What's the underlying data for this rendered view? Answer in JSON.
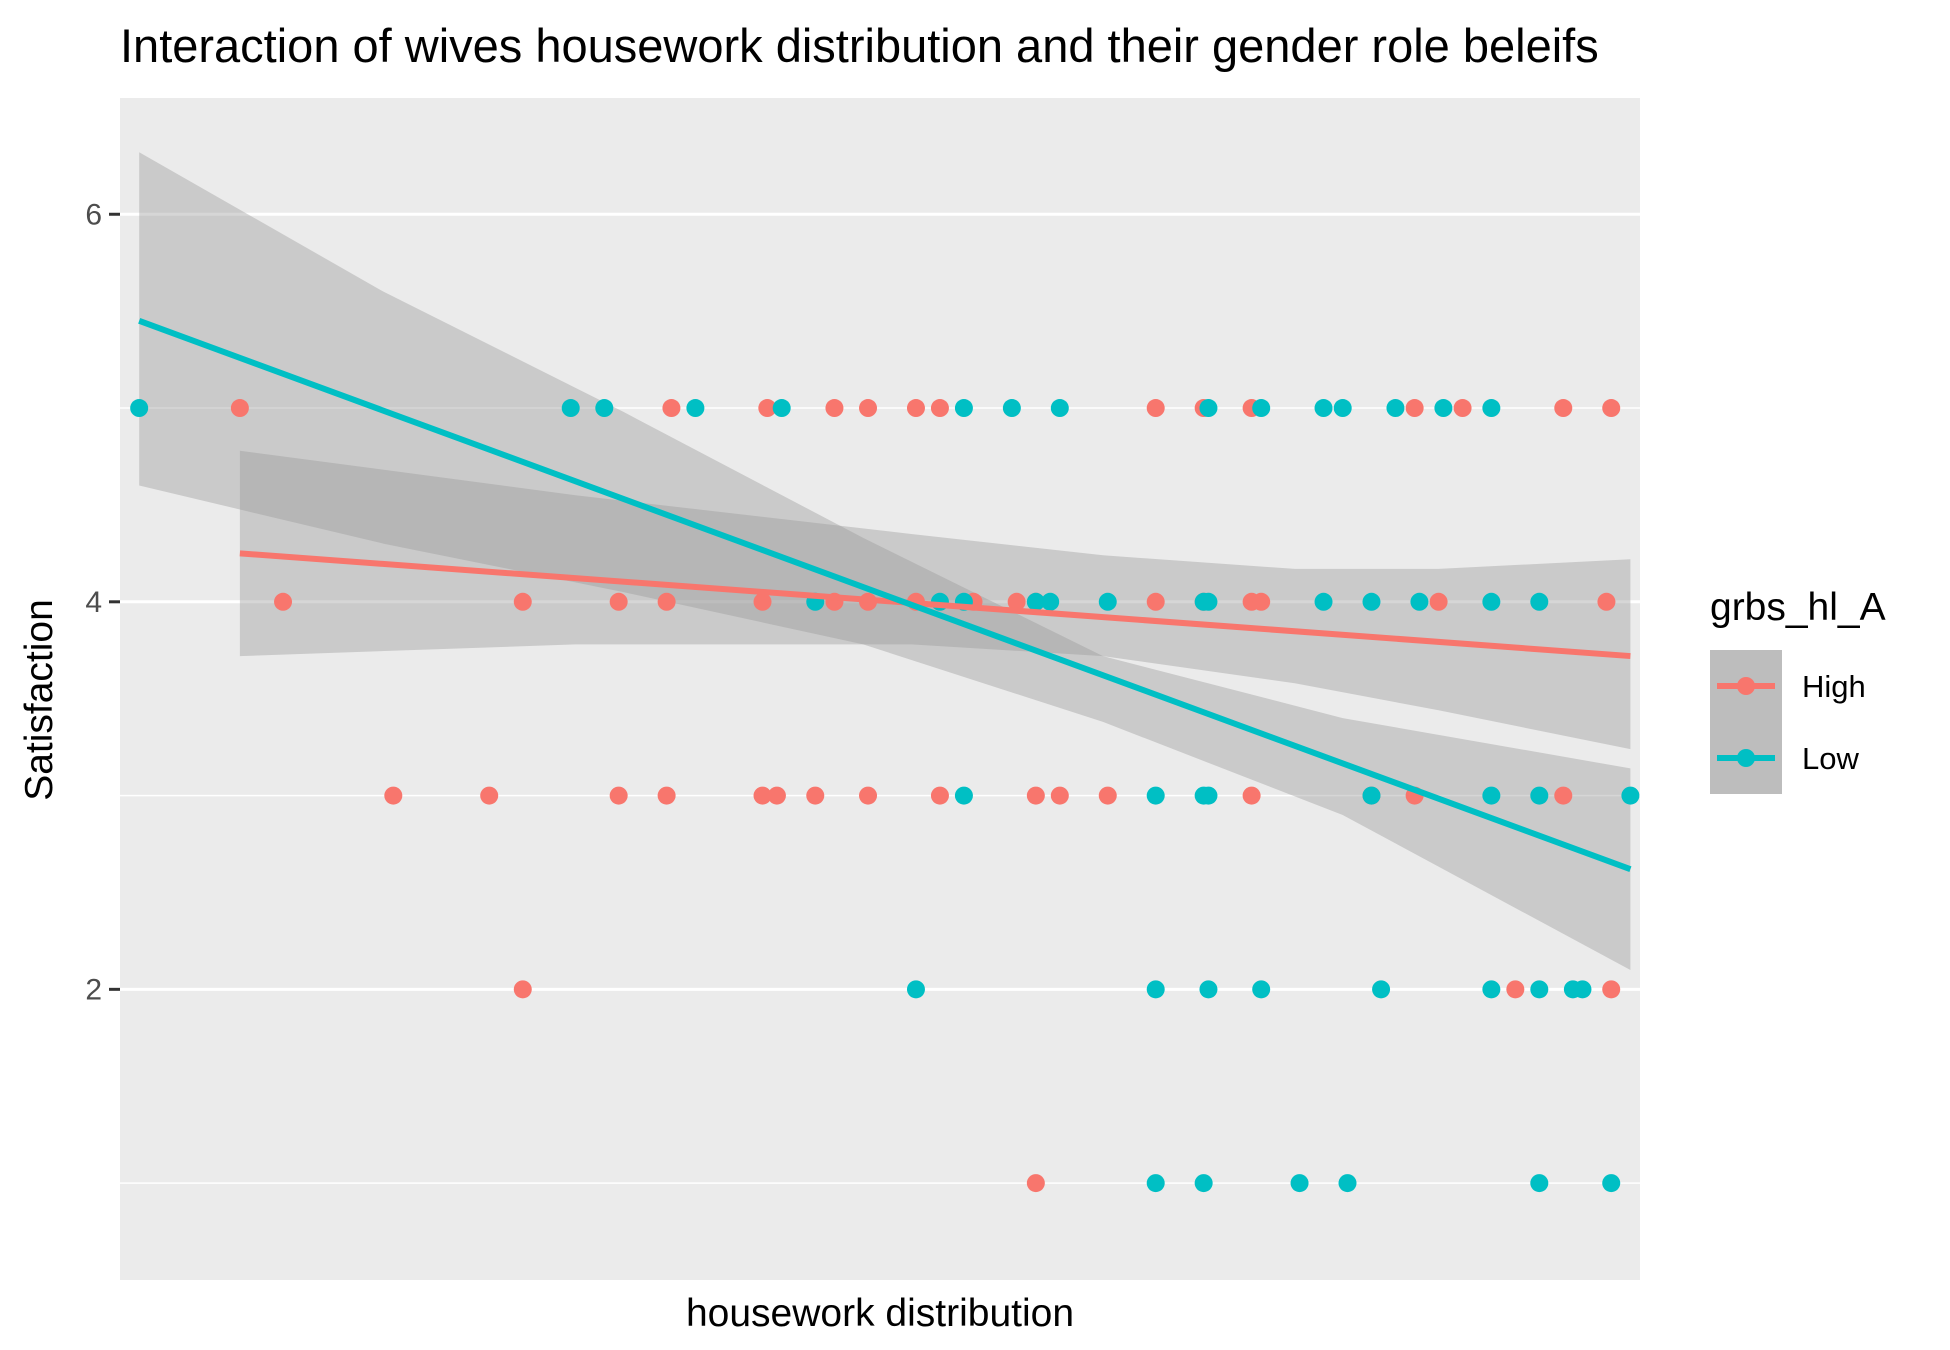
{
  "chart_data": {
    "type": "scatter",
    "title": "Interaction of wives housework distribution and their gender role beleifs",
    "xlabel": "housework distribution",
    "ylabel": "Satisfaction",
    "xlim": [
      -0.5,
      31.2
    ],
    "ylim": [
      0.5,
      6.6
    ],
    "x_ticks": [],
    "y_ticks": [
      2,
      4,
      6
    ],
    "grid": true,
    "legend": {
      "title": "grbs_hl_A",
      "placement": "right"
    },
    "series": [
      {
        "name": "High",
        "color": "#F8766D",
        "points": [
          {
            "x": 2,
            "y": 5
          },
          {
            "x": 11,
            "y": 5
          },
          {
            "x": 13,
            "y": 5
          },
          {
            "x": 14.4,
            "y": 5
          },
          {
            "x": 15.1,
            "y": 5
          },
          {
            "x": 16.1,
            "y": 5
          },
          {
            "x": 16.6,
            "y": 5
          },
          {
            "x": 21.1,
            "y": 5
          },
          {
            "x": 22.1,
            "y": 5
          },
          {
            "x": 23.1,
            "y": 5
          },
          {
            "x": 26.5,
            "y": 5
          },
          {
            "x": 27.5,
            "y": 5
          },
          {
            "x": 29.6,
            "y": 5
          },
          {
            "x": 30.6,
            "y": 5
          },
          {
            "x": 2.9,
            "y": 4
          },
          {
            "x": 7.9,
            "y": 4
          },
          {
            "x": 9.9,
            "y": 4
          },
          {
            "x": 10.9,
            "y": 4
          },
          {
            "x": 12.9,
            "y": 4
          },
          {
            "x": 14.4,
            "y": 4
          },
          {
            "x": 15.1,
            "y": 4
          },
          {
            "x": 16.1,
            "y": 4
          },
          {
            "x": 17.3,
            "y": 4
          },
          {
            "x": 18.2,
            "y": 4
          },
          {
            "x": 18.6,
            "y": 4
          },
          {
            "x": 21.1,
            "y": 4
          },
          {
            "x": 22.1,
            "y": 4
          },
          {
            "x": 23.1,
            "y": 4
          },
          {
            "x": 23.3,
            "y": 4
          },
          {
            "x": 27,
            "y": 4
          },
          {
            "x": 30.5,
            "y": 4
          },
          {
            "x": 5.2,
            "y": 3
          },
          {
            "x": 7.2,
            "y": 3
          },
          {
            "x": 9.9,
            "y": 3
          },
          {
            "x": 10.9,
            "y": 3
          },
          {
            "x": 12.9,
            "y": 3
          },
          {
            "x": 13.2,
            "y": 3
          },
          {
            "x": 14,
            "y": 3
          },
          {
            "x": 15.1,
            "y": 3
          },
          {
            "x": 16.6,
            "y": 3
          },
          {
            "x": 18.6,
            "y": 3
          },
          {
            "x": 19.1,
            "y": 3
          },
          {
            "x": 20.1,
            "y": 3
          },
          {
            "x": 23.1,
            "y": 3
          },
          {
            "x": 25.6,
            "y": 3
          },
          {
            "x": 26.5,
            "y": 3
          },
          {
            "x": 29.6,
            "y": 3
          },
          {
            "x": 7.9,
            "y": 2
          },
          {
            "x": 28.6,
            "y": 2
          },
          {
            "x": 30.6,
            "y": 2
          },
          {
            "x": 18.6,
            "y": 1
          }
        ],
        "fit": {
          "x": [
            2,
            31
          ],
          "y": [
            4.25,
            3.72
          ]
        },
        "ci_upper": [
          {
            "x": 2,
            "y": 4.78
          },
          {
            "x": 9,
            "y": 4.55
          },
          {
            "x": 16,
            "y": 4.35
          },
          {
            "x": 20,
            "y": 4.24
          },
          {
            "x": 24,
            "y": 4.17
          },
          {
            "x": 27,
            "y": 4.17
          },
          {
            "x": 31,
            "y": 4.22
          }
        ],
        "ci_lower": [
          {
            "x": 2,
            "y": 3.72
          },
          {
            "x": 9,
            "y": 3.78
          },
          {
            "x": 16,
            "y": 3.78
          },
          {
            "x": 20,
            "y": 3.72
          },
          {
            "x": 24,
            "y": 3.58
          },
          {
            "x": 27,
            "y": 3.44
          },
          {
            "x": 31,
            "y": 3.24
          }
        ]
      },
      {
        "name": "Low",
        "color": "#00BFC4",
        "points": [
          {
            "x": -0.1,
            "y": 5
          },
          {
            "x": 8.9,
            "y": 5
          },
          {
            "x": 9.6,
            "y": 5
          },
          {
            "x": 11.5,
            "y": 5
          },
          {
            "x": 13.3,
            "y": 5
          },
          {
            "x": 17.1,
            "y": 5
          },
          {
            "x": 18.1,
            "y": 5
          },
          {
            "x": 19.1,
            "y": 5
          },
          {
            "x": 22.2,
            "y": 5
          },
          {
            "x": 23.3,
            "y": 5
          },
          {
            "x": 24.6,
            "y": 5
          },
          {
            "x": 25,
            "y": 5
          },
          {
            "x": 26.1,
            "y": 5
          },
          {
            "x": 27.1,
            "y": 5
          },
          {
            "x": 28.1,
            "y": 5
          },
          {
            "x": 14,
            "y": 4
          },
          {
            "x": 16.6,
            "y": 4
          },
          {
            "x": 17.1,
            "y": 4
          },
          {
            "x": 18.6,
            "y": 4
          },
          {
            "x": 18.9,
            "y": 4
          },
          {
            "x": 20.1,
            "y": 4
          },
          {
            "x": 22.1,
            "y": 4
          },
          {
            "x": 22.2,
            "y": 4
          },
          {
            "x": 24.6,
            "y": 4
          },
          {
            "x": 25.6,
            "y": 4
          },
          {
            "x": 26.6,
            "y": 4
          },
          {
            "x": 28.1,
            "y": 4
          },
          {
            "x": 29.1,
            "y": 4
          },
          {
            "x": 17.1,
            "y": 3
          },
          {
            "x": 21.1,
            "y": 3
          },
          {
            "x": 22.1,
            "y": 3
          },
          {
            "x": 22.2,
            "y": 3
          },
          {
            "x": 25.6,
            "y": 3
          },
          {
            "x": 28.1,
            "y": 3
          },
          {
            "x": 29.1,
            "y": 3
          },
          {
            "x": 31,
            "y": 3
          },
          {
            "x": 16.1,
            "y": 2
          },
          {
            "x": 21.1,
            "y": 2
          },
          {
            "x": 22.2,
            "y": 2
          },
          {
            "x": 23.3,
            "y": 2
          },
          {
            "x": 25.8,
            "y": 2
          },
          {
            "x": 28.1,
            "y": 2
          },
          {
            "x": 29.1,
            "y": 2
          },
          {
            "x": 29.8,
            "y": 2
          },
          {
            "x": 30,
            "y": 2
          },
          {
            "x": 21.1,
            "y": 1
          },
          {
            "x": 22.1,
            "y": 1
          },
          {
            "x": 24.1,
            "y": 1
          },
          {
            "x": 25.1,
            "y": 1
          },
          {
            "x": 29.1,
            "y": 1
          },
          {
            "x": 30.6,
            "y": 1
          }
        ],
        "fit": {
          "x": [
            -0.1,
            31
          ],
          "y": [
            5.45,
            2.62
          ]
        },
        "ci_upper": [
          {
            "x": -0.1,
            "y": 6.32
          },
          {
            "x": 5,
            "y": 5.6
          },
          {
            "x": 10,
            "y": 4.98
          },
          {
            "x": 15,
            "y": 4.33
          },
          {
            "x": 20,
            "y": 3.72
          },
          {
            "x": 25,
            "y": 3.4
          },
          {
            "x": 31,
            "y": 3.14
          }
        ],
        "ci_lower": [
          {
            "x": -0.1,
            "y": 4.6
          },
          {
            "x": 5,
            "y": 4.3
          },
          {
            "x": 10,
            "y": 4.05
          },
          {
            "x": 15,
            "y": 3.78
          },
          {
            "x": 20,
            "y": 3.38
          },
          {
            "x": 25,
            "y": 2.9
          },
          {
            "x": 31,
            "y": 2.1
          }
        ]
      }
    ]
  }
}
